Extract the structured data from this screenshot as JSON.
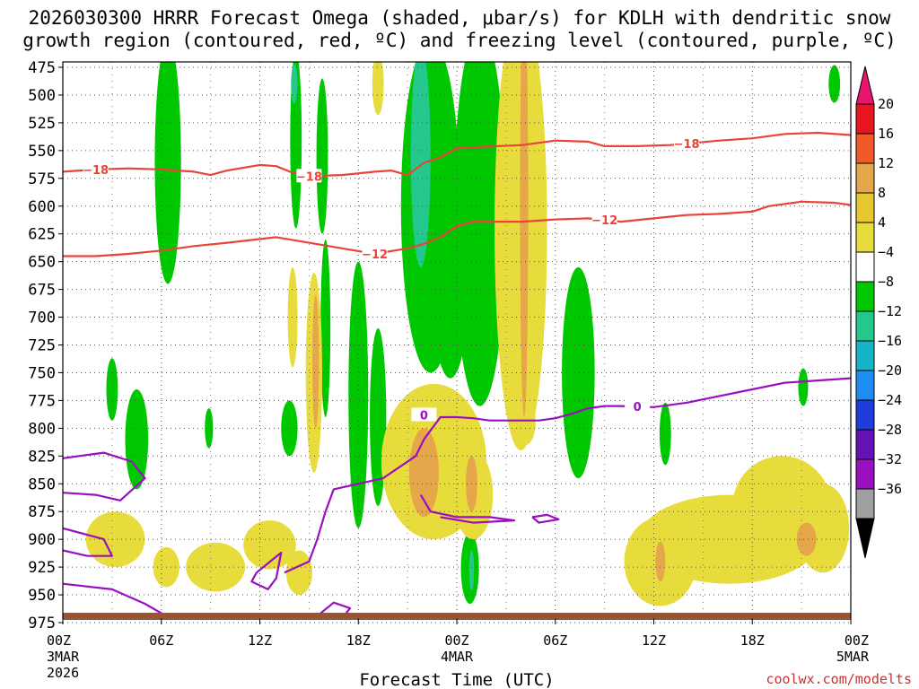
{
  "title_line1": "2026030300 HRRR Forecast Omega (shaded, μbar/s) for KDLH with dendritic snow",
  "title_line2": "growth region (contoured, red, ºC) and freezing level (contoured, purple, ºC)",
  "credit": "coolwx.com/modelts",
  "colors": {
    "ascent_light": "#d8dc00",
    "ascent_yellow": "#e8dc3c",
    "ascent_orange": "#e6a64a",
    "green": "#00c800",
    "teal": "#24c88c",
    "cyan": "#16b4c8",
    "dgz_line": "#e8443a",
    "freezing_line": "#9a0fbf",
    "ground": "#a0522d"
  },
  "chart_data": {
    "type": "time-height",
    "xlabel": "Forecast Time (UTC)",
    "x_unit": "hours since 2026-03-03 00Z",
    "xlim": [
      0,
      48
    ],
    "x_ticks": [
      {
        "hours": 0,
        "label": "00Z",
        "date": "3MAR",
        "year": "2026"
      },
      {
        "hours": 6,
        "label": "06Z"
      },
      {
        "hours": 12,
        "label": "12Z"
      },
      {
        "hours": 18,
        "label": "18Z"
      },
      {
        "hours": 24,
        "label": "00Z",
        "date": "4MAR"
      },
      {
        "hours": 30,
        "label": "06Z"
      },
      {
        "hours": 36,
        "label": "12Z"
      },
      {
        "hours": 42,
        "label": "18Z"
      },
      {
        "hours": 48,
        "label": "00Z",
        "date": "5MAR"
      }
    ],
    "y_unit": "hPa",
    "y_ticks": [
      475,
      500,
      525,
      550,
      575,
      600,
      625,
      650,
      675,
      700,
      725,
      750,
      775,
      800,
      825,
      850,
      875,
      900,
      925,
      950,
      975
    ],
    "ylim": [
      470,
      980
    ],
    "grid": true,
    "colorbar": {
      "unit": "μbar/s",
      "levels": [
        20,
        16,
        12,
        8,
        4,
        -4,
        -8,
        -12,
        -16,
        -20,
        -24,
        -28,
        -32,
        -36
      ],
      "colors": [
        "#e8141e",
        "#f05a28",
        "#e6a64a",
        "#e8c830",
        "#e8dc3c",
        "#ffffff",
        "#00c800",
        "#24c88c",
        "#16b4c8",
        "#1e8cf0",
        "#1e3cdc",
        "#6414b4",
        "#9a0fbf",
        "#a0a0a0"
      ],
      "top_color": "#e8146e",
      "bottom_color": "#000000"
    },
    "contours": [
      {
        "label": "-18",
        "points": [
          [
            0,
            569
          ],
          [
            2,
            567
          ],
          [
            4,
            566
          ],
          [
            6,
            567
          ],
          [
            8,
            569
          ],
          [
            9,
            572
          ],
          [
            10,
            568
          ],
          [
            12,
            563
          ],
          [
            13,
            564
          ],
          [
            14,
            570
          ],
          [
            15,
            573
          ],
          [
            17,
            572
          ],
          [
            19,
            569
          ],
          [
            20,
            568
          ],
          [
            21,
            572
          ],
          [
            22,
            561
          ],
          [
            23,
            556
          ],
          [
            24,
            548
          ],
          [
            25,
            547
          ],
          [
            28,
            545
          ],
          [
            30,
            541
          ],
          [
            32,
            542
          ],
          [
            33,
            546
          ],
          [
            35,
            546
          ],
          [
            37,
            545
          ],
          [
            40,
            541
          ],
          [
            42,
            539
          ],
          [
            44,
            535
          ],
          [
            46,
            534
          ],
          [
            48,
            536
          ]
        ],
        "label_hours": [
          2,
          15,
          38
        ]
      },
      {
        "label": "-12",
        "points": [
          [
            0,
            645
          ],
          [
            2,
            645
          ],
          [
            4,
            643
          ],
          [
            6,
            640
          ],
          [
            8,
            636
          ],
          [
            10,
            633
          ],
          [
            13,
            628
          ],
          [
            15,
            633
          ],
          [
            17,
            638
          ],
          [
            19,
            643
          ],
          [
            21,
            638
          ],
          [
            22,
            634
          ],
          [
            23,
            628
          ],
          [
            24,
            618
          ],
          [
            25,
            614
          ],
          [
            28,
            614
          ],
          [
            30,
            612
          ],
          [
            32,
            611
          ],
          [
            34,
            614
          ],
          [
            36,
            611
          ],
          [
            38,
            608
          ],
          [
            40,
            607
          ],
          [
            42,
            605
          ],
          [
            43,
            600
          ],
          [
            45,
            596
          ],
          [
            47,
            597
          ],
          [
            48,
            599
          ]
        ],
        "label_hours": [
          19,
          33
        ]
      },
      {
        "label": "0",
        "points": [
          [
            24,
            790
          ],
          [
            25,
            791
          ],
          [
            26,
            793
          ],
          [
            27,
            793
          ],
          [
            29,
            793
          ],
          [
            30,
            791
          ],
          [
            31,
            787
          ],
          [
            32,
            782
          ],
          [
            33,
            780
          ],
          [
            34,
            780
          ],
          [
            36,
            781
          ],
          [
            38,
            777
          ],
          [
            40,
            771
          ],
          [
            42,
            765
          ],
          [
            44,
            759
          ],
          [
            46,
            757
          ],
          [
            48,
            755
          ]
        ],
        "label_hours": [
          22,
          35
        ]
      }
    ]
  }
}
